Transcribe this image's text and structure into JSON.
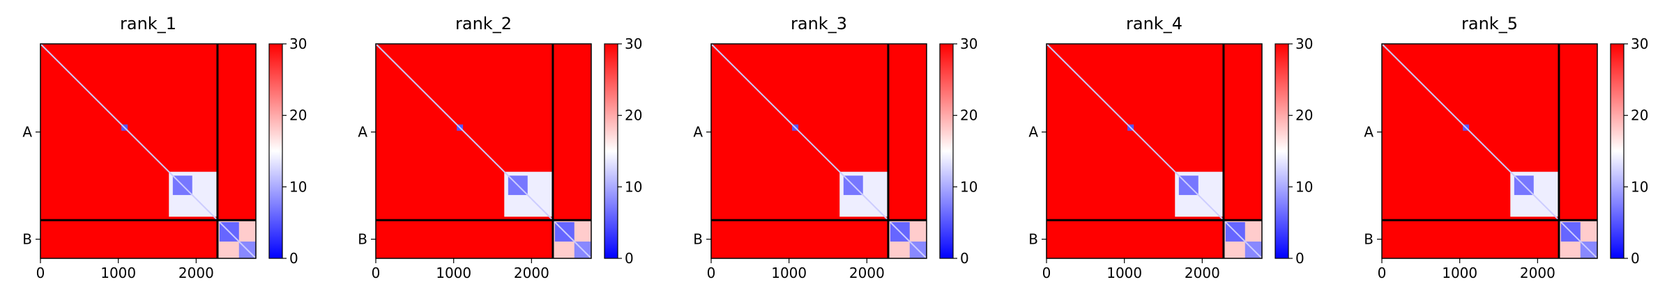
{
  "chart_data": [
    {
      "type": "heatmap",
      "title": "rank_1",
      "xlim": [
        0,
        2767
      ],
      "ylim": [
        2767,
        0
      ],
      "xticks": [
        0,
        1000,
        2000
      ],
      "yticks": [
        {
          "value": 1137,
          "label": "A"
        },
        {
          "value": 2520,
          "label": "B"
        }
      ],
      "chain_breaks": [
        2274
      ],
      "clim": [
        0,
        30
      ],
      "cticks": [
        0,
        10,
        20,
        30
      ],
      "colormap": [
        "#0000ff",
        "#ffffff",
        "#ff0000"
      ],
      "background": 30,
      "diagonal": 12,
      "regions": [
        {
          "x": [
            1040,
            1120
          ],
          "y": [
            1040,
            1120
          ],
          "value": 5
        },
        {
          "x": [
            1650,
            2274
          ],
          "y": [
            1650,
            2230
          ],
          "value": 14
        },
        {
          "x": [
            1700,
            1950
          ],
          "y": [
            1700,
            1950
          ],
          "value": 7
        },
        {
          "x": [
            2274,
            2767
          ],
          "y": [
            2274,
            2767
          ],
          "value": 18
        },
        {
          "x": [
            2300,
            2550
          ],
          "y": [
            2300,
            2550
          ],
          "value": 6
        },
        {
          "x": [
            2550,
            2767
          ],
          "y": [
            2550,
            2767
          ],
          "value": 8
        }
      ]
    },
    {
      "type": "heatmap",
      "title": "rank_2",
      "xlim": [
        0,
        2767
      ],
      "ylim": [
        2767,
        0
      ],
      "xticks": [
        0,
        1000,
        2000
      ],
      "yticks": [
        {
          "value": 1137,
          "label": "A"
        },
        {
          "value": 2520,
          "label": "B"
        }
      ],
      "chain_breaks": [
        2274
      ],
      "clim": [
        0,
        30
      ],
      "cticks": [
        0,
        10,
        20,
        30
      ],
      "colormap": [
        "#0000ff",
        "#ffffff",
        "#ff0000"
      ],
      "background": 30,
      "diagonal": 12,
      "regions": [
        {
          "x": [
            1040,
            1120
          ],
          "y": [
            1040,
            1120
          ],
          "value": 5
        },
        {
          "x": [
            1650,
            2274
          ],
          "y": [
            1650,
            2230
          ],
          "value": 14
        },
        {
          "x": [
            1700,
            1950
          ],
          "y": [
            1700,
            1950
          ],
          "value": 7
        },
        {
          "x": [
            2274,
            2767
          ],
          "y": [
            2274,
            2767
          ],
          "value": 18
        },
        {
          "x": [
            2300,
            2550
          ],
          "y": [
            2300,
            2550
          ],
          "value": 6
        },
        {
          "x": [
            2550,
            2767
          ],
          "y": [
            2550,
            2767
          ],
          "value": 8
        }
      ]
    },
    {
      "type": "heatmap",
      "title": "rank_3",
      "xlim": [
        0,
        2767
      ],
      "ylim": [
        2767,
        0
      ],
      "xticks": [
        0,
        1000,
        2000
      ],
      "yticks": [
        {
          "value": 1137,
          "label": "A"
        },
        {
          "value": 2520,
          "label": "B"
        }
      ],
      "chain_breaks": [
        2274
      ],
      "clim": [
        0,
        30
      ],
      "cticks": [
        0,
        10,
        20,
        30
      ],
      "colormap": [
        "#0000ff",
        "#ffffff",
        "#ff0000"
      ],
      "background": 30,
      "diagonal": 12,
      "regions": [
        {
          "x": [
            1040,
            1120
          ],
          "y": [
            1040,
            1120
          ],
          "value": 5
        },
        {
          "x": [
            1650,
            2274
          ],
          "y": [
            1650,
            2230
          ],
          "value": 14
        },
        {
          "x": [
            1700,
            1950
          ],
          "y": [
            1700,
            1950
          ],
          "value": 7
        },
        {
          "x": [
            2274,
            2767
          ],
          "y": [
            2274,
            2767
          ],
          "value": 18
        },
        {
          "x": [
            2300,
            2550
          ],
          "y": [
            2300,
            2550
          ],
          "value": 6
        },
        {
          "x": [
            2550,
            2767
          ],
          "y": [
            2550,
            2767
          ],
          "value": 8
        }
      ]
    },
    {
      "type": "heatmap",
      "title": "rank_4",
      "xlim": [
        0,
        2767
      ],
      "ylim": [
        2767,
        0
      ],
      "xticks": [
        0,
        1000,
        2000
      ],
      "yticks": [
        {
          "value": 1137,
          "label": "A"
        },
        {
          "value": 2520,
          "label": "B"
        }
      ],
      "chain_breaks": [
        2274
      ],
      "clim": [
        0,
        30
      ],
      "cticks": [
        0,
        10,
        20,
        30
      ],
      "colormap": [
        "#0000ff",
        "#ffffff",
        "#ff0000"
      ],
      "background": 30,
      "diagonal": 12,
      "regions": [
        {
          "x": [
            1040,
            1120
          ],
          "y": [
            1040,
            1120
          ],
          "value": 5
        },
        {
          "x": [
            1650,
            2274
          ],
          "y": [
            1650,
            2230
          ],
          "value": 14
        },
        {
          "x": [
            1700,
            1950
          ],
          "y": [
            1700,
            1950
          ],
          "value": 7
        },
        {
          "x": [
            2274,
            2767
          ],
          "y": [
            2274,
            2767
          ],
          "value": 18
        },
        {
          "x": [
            2300,
            2550
          ],
          "y": [
            2300,
            2550
          ],
          "value": 6
        },
        {
          "x": [
            2550,
            2767
          ],
          "y": [
            2550,
            2767
          ],
          "value": 8
        }
      ]
    },
    {
      "type": "heatmap",
      "title": "rank_5",
      "xlim": [
        0,
        2767
      ],
      "ylim": [
        2767,
        0
      ],
      "xticks": [
        0,
        1000,
        2000
      ],
      "yticks": [
        {
          "value": 1137,
          "label": "A"
        },
        {
          "value": 2520,
          "label": "B"
        }
      ],
      "chain_breaks": [
        2274
      ],
      "clim": [
        0,
        30
      ],
      "cticks": [
        0,
        10,
        20,
        30
      ],
      "colormap": [
        "#0000ff",
        "#ffffff",
        "#ff0000"
      ],
      "background": 30,
      "diagonal": 12,
      "regions": [
        {
          "x": [
            1040,
            1120
          ],
          "y": [
            1040,
            1120
          ],
          "value": 5
        },
        {
          "x": [
            1650,
            2274
          ],
          "y": [
            1650,
            2230
          ],
          "value": 14
        },
        {
          "x": [
            1700,
            1950
          ],
          "y": [
            1700,
            1950
          ],
          "value": 7
        },
        {
          "x": [
            2274,
            2767
          ],
          "y": [
            2274,
            2767
          ],
          "value": 18
        },
        {
          "x": [
            2300,
            2550
          ],
          "y": [
            2300,
            2550
          ],
          "value": 6
        },
        {
          "x": [
            2550,
            2767
          ],
          "y": [
            2550,
            2767
          ],
          "value": 8
        }
      ]
    }
  ]
}
